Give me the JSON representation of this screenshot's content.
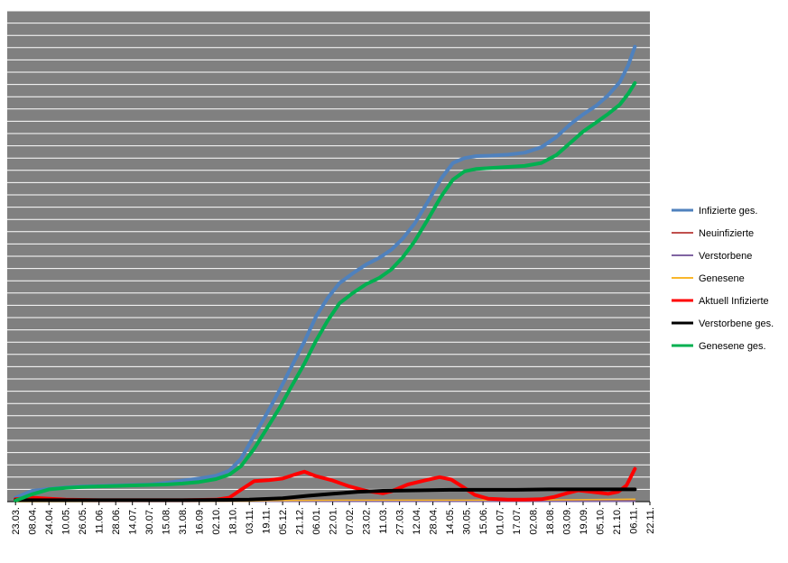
{
  "chart_data": {
    "type": "line",
    "title": "",
    "xlabel": "",
    "ylabel": "",
    "grid": true,
    "background": "#808080",
    "gridline_color": "#ffffff",
    "y_axis_tick_labels": "none",
    "legend_position": "right",
    "x_tick_labels": [
      "23.03.",
      "08.04.",
      "24.04.",
      "10.05.",
      "26.05.",
      "11.06.",
      "28.06.",
      "14.07.",
      "30.07.",
      "15.08.",
      "31.08.",
      "16.09.",
      "02.10.",
      "18.10.",
      "03.11.",
      "19.11.",
      "05.12.",
      "21.12.",
      "06.01.",
      "22.01.",
      "07.02.",
      "23.02.",
      "11.03.",
      "27.03.",
      "12.04.",
      "28.04.",
      "14.05.",
      "30.05.",
      "15.06.",
      "01.07.",
      "17.07.",
      "02.08.",
      "18.08.",
      "03.09.",
      "19.09.",
      "05.10.",
      "21.10.",
      "06.11.",
      "22.11."
    ],
    "ylim": [
      0,
      100
    ],
    "series": [
      {
        "name": "Infizierte ges.",
        "color": "#4f81bd",
        "width": 4,
        "points": [
          [
            0,
            0.8
          ],
          [
            1,
            2.2
          ],
          [
            2,
            2.6
          ],
          [
            3,
            2.9
          ],
          [
            4,
            3.1
          ],
          [
            5,
            3.2
          ],
          [
            6,
            3.3
          ],
          [
            7,
            3.4
          ],
          [
            8,
            3.5
          ],
          [
            9,
            3.8
          ],
          [
            10,
            4.3
          ],
          [
            11,
            4.7
          ],
          [
            12,
            5.3
          ],
          [
            12.8,
            6.3
          ],
          [
            13.5,
            8.7
          ],
          [
            14.3,
            13.5
          ],
          [
            15,
            17.6
          ],
          [
            15.8,
            22.6
          ],
          [
            16.5,
            27.3
          ],
          [
            17.3,
            32.6
          ],
          [
            18,
            37.7
          ],
          [
            18.7,
            41.5
          ],
          [
            19.4,
            44.5
          ],
          [
            20.2,
            46.5
          ],
          [
            21,
            48.3
          ],
          [
            21.8,
            49.7
          ],
          [
            22.5,
            51.3
          ],
          [
            23.2,
            53.6
          ],
          [
            23.9,
            56.6
          ],
          [
            24.7,
            61.1
          ],
          [
            25.5,
            65.8
          ],
          [
            26.2,
            69.0
          ],
          [
            26.9,
            70.0
          ],
          [
            27.6,
            70.4
          ],
          [
            28.5,
            70.5
          ],
          [
            29.5,
            70.7
          ],
          [
            30.5,
            71.1
          ],
          [
            31.5,
            72.2
          ],
          [
            32.4,
            74.3
          ],
          [
            33.2,
            76.8
          ],
          [
            34,
            78.9
          ],
          [
            34.8,
            80.7
          ],
          [
            35.5,
            82.8
          ],
          [
            36.2,
            85.5
          ],
          [
            36.7,
            88.9
          ],
          [
            37.1,
            92.7
          ]
        ]
      },
      {
        "name": "Neuinfizierte",
        "color": "#c0504d",
        "width": 1.5,
        "points": [
          [
            0,
            0.2
          ],
          [
            10,
            0.2
          ],
          [
            20,
            0.3
          ],
          [
            30,
            0.3
          ],
          [
            37.1,
            0.4
          ]
        ]
      },
      {
        "name": "Verstorbene",
        "color": "#8064a2",
        "width": 1.5,
        "points": [
          [
            0,
            0.05
          ],
          [
            37.1,
            0.05
          ]
        ]
      },
      {
        "name": "Genesene",
        "color": "#f9b72b",
        "width": 1.5,
        "points": [
          [
            0,
            0
          ],
          [
            14,
            0.1
          ],
          [
            15,
            0.2
          ],
          [
            20,
            0.3
          ],
          [
            30,
            0.3
          ],
          [
            37.1,
            0.5
          ]
        ]
      },
      {
        "name": "Aktuell Infizierte",
        "color": "#ff0000",
        "width": 4,
        "points": [
          [
            0,
            0.5
          ],
          [
            1,
            0.8
          ],
          [
            2,
            0.6
          ],
          [
            3,
            0.4
          ],
          [
            5,
            0.3
          ],
          [
            8,
            0.3
          ],
          [
            10,
            0.3
          ],
          [
            12,
            0.4
          ],
          [
            12.8,
            0.8
          ],
          [
            13.5,
            2.4
          ],
          [
            14.3,
            4.2
          ],
          [
            15.2,
            4.4
          ],
          [
            16,
            4.7
          ],
          [
            16.7,
            5.5
          ],
          [
            17.3,
            6.1
          ],
          [
            18,
            5.2
          ],
          [
            19,
            4.3
          ],
          [
            20,
            3.1
          ],
          [
            21,
            2.2
          ],
          [
            22,
            1.7
          ],
          [
            22.5,
            2.1
          ],
          [
            23.5,
            3.5
          ],
          [
            24.5,
            4.3
          ],
          [
            25.4,
            5.0
          ],
          [
            26.1,
            4.5
          ],
          [
            26.8,
            3.0
          ],
          [
            27.5,
            1.4
          ],
          [
            28.3,
            0.6
          ],
          [
            29.5,
            0.4
          ],
          [
            30.5,
            0.4
          ],
          [
            31.5,
            0.5
          ],
          [
            32.3,
            1.0
          ],
          [
            33,
            1.7
          ],
          [
            33.7,
            2.3
          ],
          [
            34.5,
            2.0
          ],
          [
            35.5,
            1.6
          ],
          [
            36.1,
            2.0
          ],
          [
            36.6,
            3.3
          ],
          [
            37.1,
            6.7
          ]
        ]
      },
      {
        "name": "Verstorbene ges.",
        "color": "#000000",
        "width": 4,
        "points": [
          [
            0,
            0.3
          ],
          [
            5,
            0.3
          ],
          [
            10,
            0.3
          ],
          [
            14,
            0.4
          ],
          [
            16,
            0.7
          ],
          [
            17.5,
            1.2
          ],
          [
            19,
            1.6
          ],
          [
            20.5,
            2.0
          ],
          [
            22,
            2.2
          ],
          [
            24,
            2.3
          ],
          [
            26,
            2.4
          ],
          [
            28,
            2.4
          ],
          [
            30,
            2.4
          ],
          [
            32,
            2.5
          ],
          [
            34,
            2.5
          ],
          [
            37.1,
            2.5
          ]
        ]
      },
      {
        "name": "Genesene ges.",
        "color": "#00b050",
        "width": 4,
        "points": [
          [
            0,
            0.2
          ],
          [
            1,
            1.5
          ],
          [
            2,
            2.5
          ],
          [
            3,
            2.8
          ],
          [
            4,
            3.0
          ],
          [
            5,
            3.1
          ],
          [
            6,
            3.2
          ],
          [
            7,
            3.3
          ],
          [
            8,
            3.4
          ],
          [
            9,
            3.5
          ],
          [
            10,
            3.7
          ],
          [
            11,
            4.0
          ],
          [
            12,
            4.6
          ],
          [
            12.8,
            5.5
          ],
          [
            13.5,
            7.2
          ],
          [
            14.3,
            10.8
          ],
          [
            15,
            14.6
          ],
          [
            15.8,
            19.0
          ],
          [
            16.5,
            23.3
          ],
          [
            17.3,
            28.1
          ],
          [
            18,
            32.8
          ],
          [
            18.7,
            36.9
          ],
          [
            19.4,
            40.4
          ],
          [
            20.2,
            42.5
          ],
          [
            21,
            44.3
          ],
          [
            21.8,
            45.6
          ],
          [
            22.5,
            47.3
          ],
          [
            23.2,
            49.8
          ],
          [
            23.9,
            53.0
          ],
          [
            24.7,
            57.5
          ],
          [
            25.5,
            62.2
          ],
          [
            26.2,
            65.6
          ],
          [
            26.9,
            67.3
          ],
          [
            27.6,
            67.8
          ],
          [
            28.5,
            68.0
          ],
          [
            29.5,
            68.2
          ],
          [
            30.5,
            68.4
          ],
          [
            31.5,
            69.0
          ],
          [
            32.4,
            70.6
          ],
          [
            33.2,
            73.0
          ],
          [
            34,
            75.4
          ],
          [
            34.8,
            77.3
          ],
          [
            35.5,
            79.0
          ],
          [
            36.2,
            80.9
          ],
          [
            36.7,
            83.1
          ],
          [
            37.1,
            85.3
          ]
        ]
      }
    ]
  }
}
